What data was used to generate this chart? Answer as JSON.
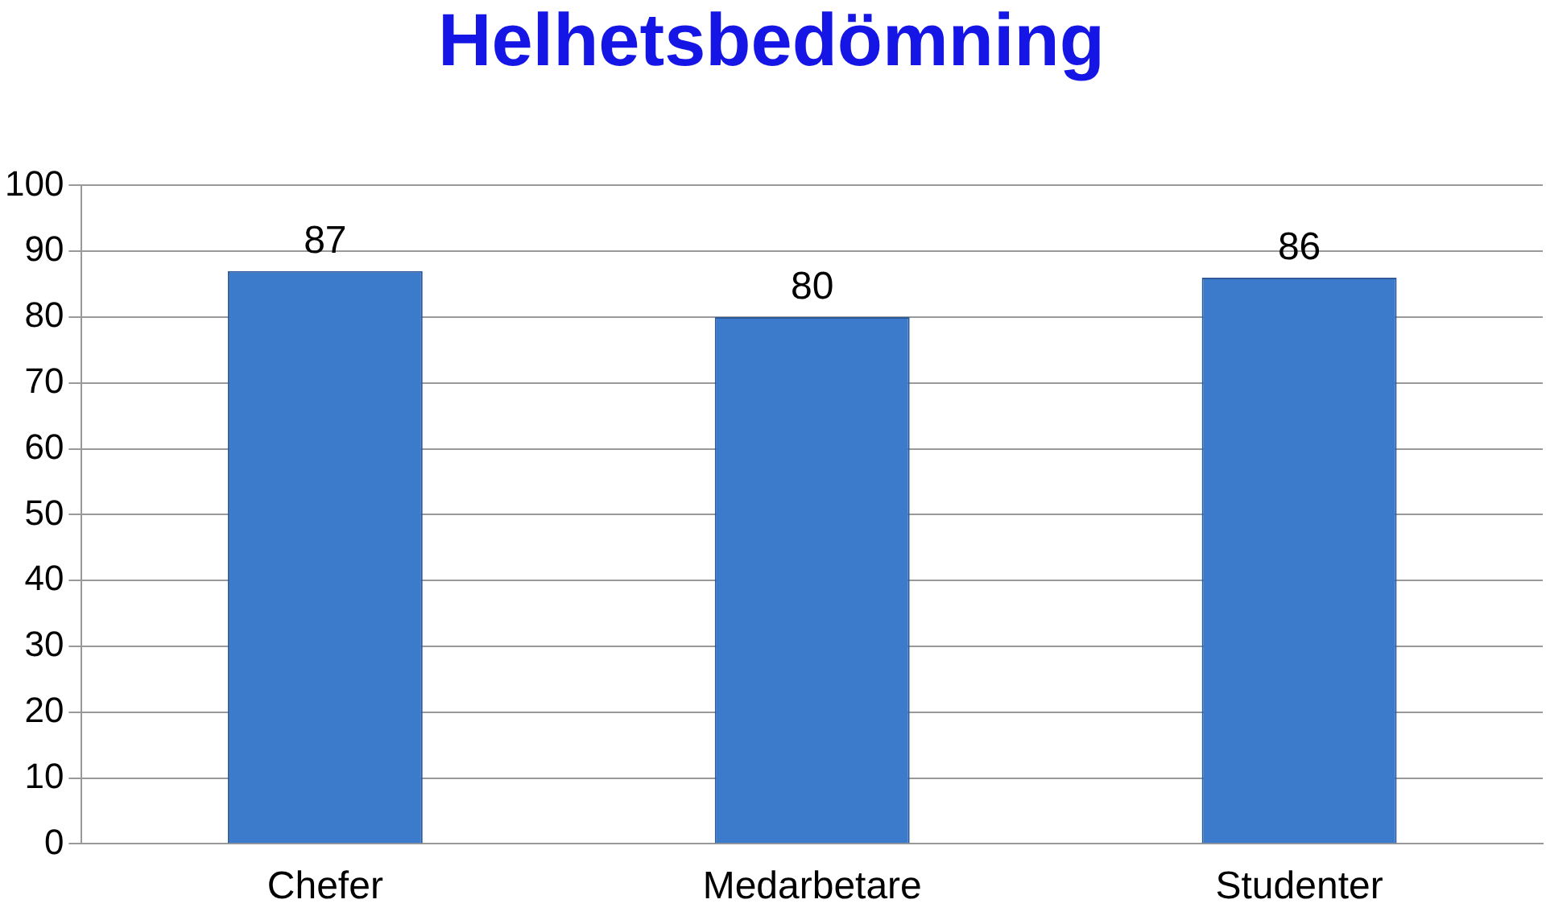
{
  "chart_data": {
    "type": "bar",
    "title": "Helhetsbedömning",
    "categories": [
      "Chefer",
      "Medarbetare",
      "Studenter"
    ],
    "values": [
      87,
      80,
      86
    ],
    "color": "#3c7bcc",
    "ylim": [
      0,
      100
    ],
    "yticks": [
      0,
      10,
      20,
      30,
      40,
      50,
      60,
      70,
      80,
      90,
      100
    ],
    "grid": "y",
    "data_labels": true,
    "legend": false
  }
}
